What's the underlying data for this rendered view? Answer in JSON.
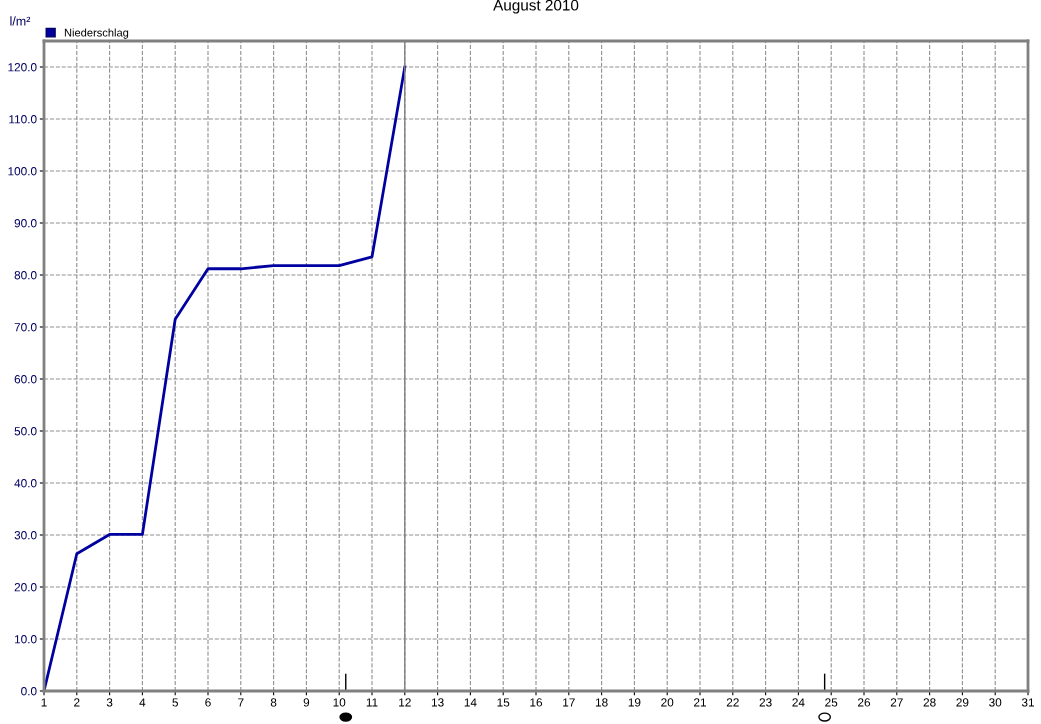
{
  "chart_data": {
    "type": "line",
    "title": "August 2010",
    "ylabel": "l/m²",
    "x": [
      1,
      2,
      3,
      4,
      5,
      6,
      7,
      8,
      9,
      10,
      11,
      12
    ],
    "series": [
      {
        "name": "Niederschlag",
        "color": "#0000a0",
        "values": [
          0,
          26.4,
          30.1,
          30.1,
          71.5,
          81.2,
          81.2,
          81.8,
          81.8,
          81.8,
          83.5,
          120
        ]
      }
    ],
    "xlim": [
      1,
      31
    ],
    "xticks": [
      1,
      2,
      3,
      4,
      5,
      6,
      7,
      8,
      9,
      10,
      11,
      12,
      13,
      14,
      15,
      16,
      17,
      18,
      19,
      20,
      21,
      22,
      23,
      24,
      25,
      26,
      27,
      28,
      29,
      30,
      31
    ],
    "ylim": [
      0,
      125
    ],
    "yticks": [
      {
        "value": 0,
        "label": "0.0"
      },
      {
        "value": 10,
        "label": "10.0"
      },
      {
        "value": 20,
        "label": "20.0"
      },
      {
        "value": 30,
        "label": "30.0"
      },
      {
        "value": 40,
        "label": "40.0"
      },
      {
        "value": 50,
        "label": "50.0"
      },
      {
        "value": 60,
        "label": "60.0"
      },
      {
        "value": 70,
        "label": "70.0"
      },
      {
        "value": 80,
        "label": "80.0"
      },
      {
        "value": 90,
        "label": "90.0"
      },
      {
        "value": 100,
        "label": "100.0"
      },
      {
        "value": 110,
        "label": "110.0"
      },
      {
        "value": 120,
        "label": "120.0"
      }
    ],
    "ref_lines": [
      {
        "axis": "x",
        "value": 12,
        "color": "#808080",
        "line_style": "solid"
      }
    ],
    "grid": true,
    "legend": "top left",
    "marker": "none",
    "line_style": "solid"
  }
}
